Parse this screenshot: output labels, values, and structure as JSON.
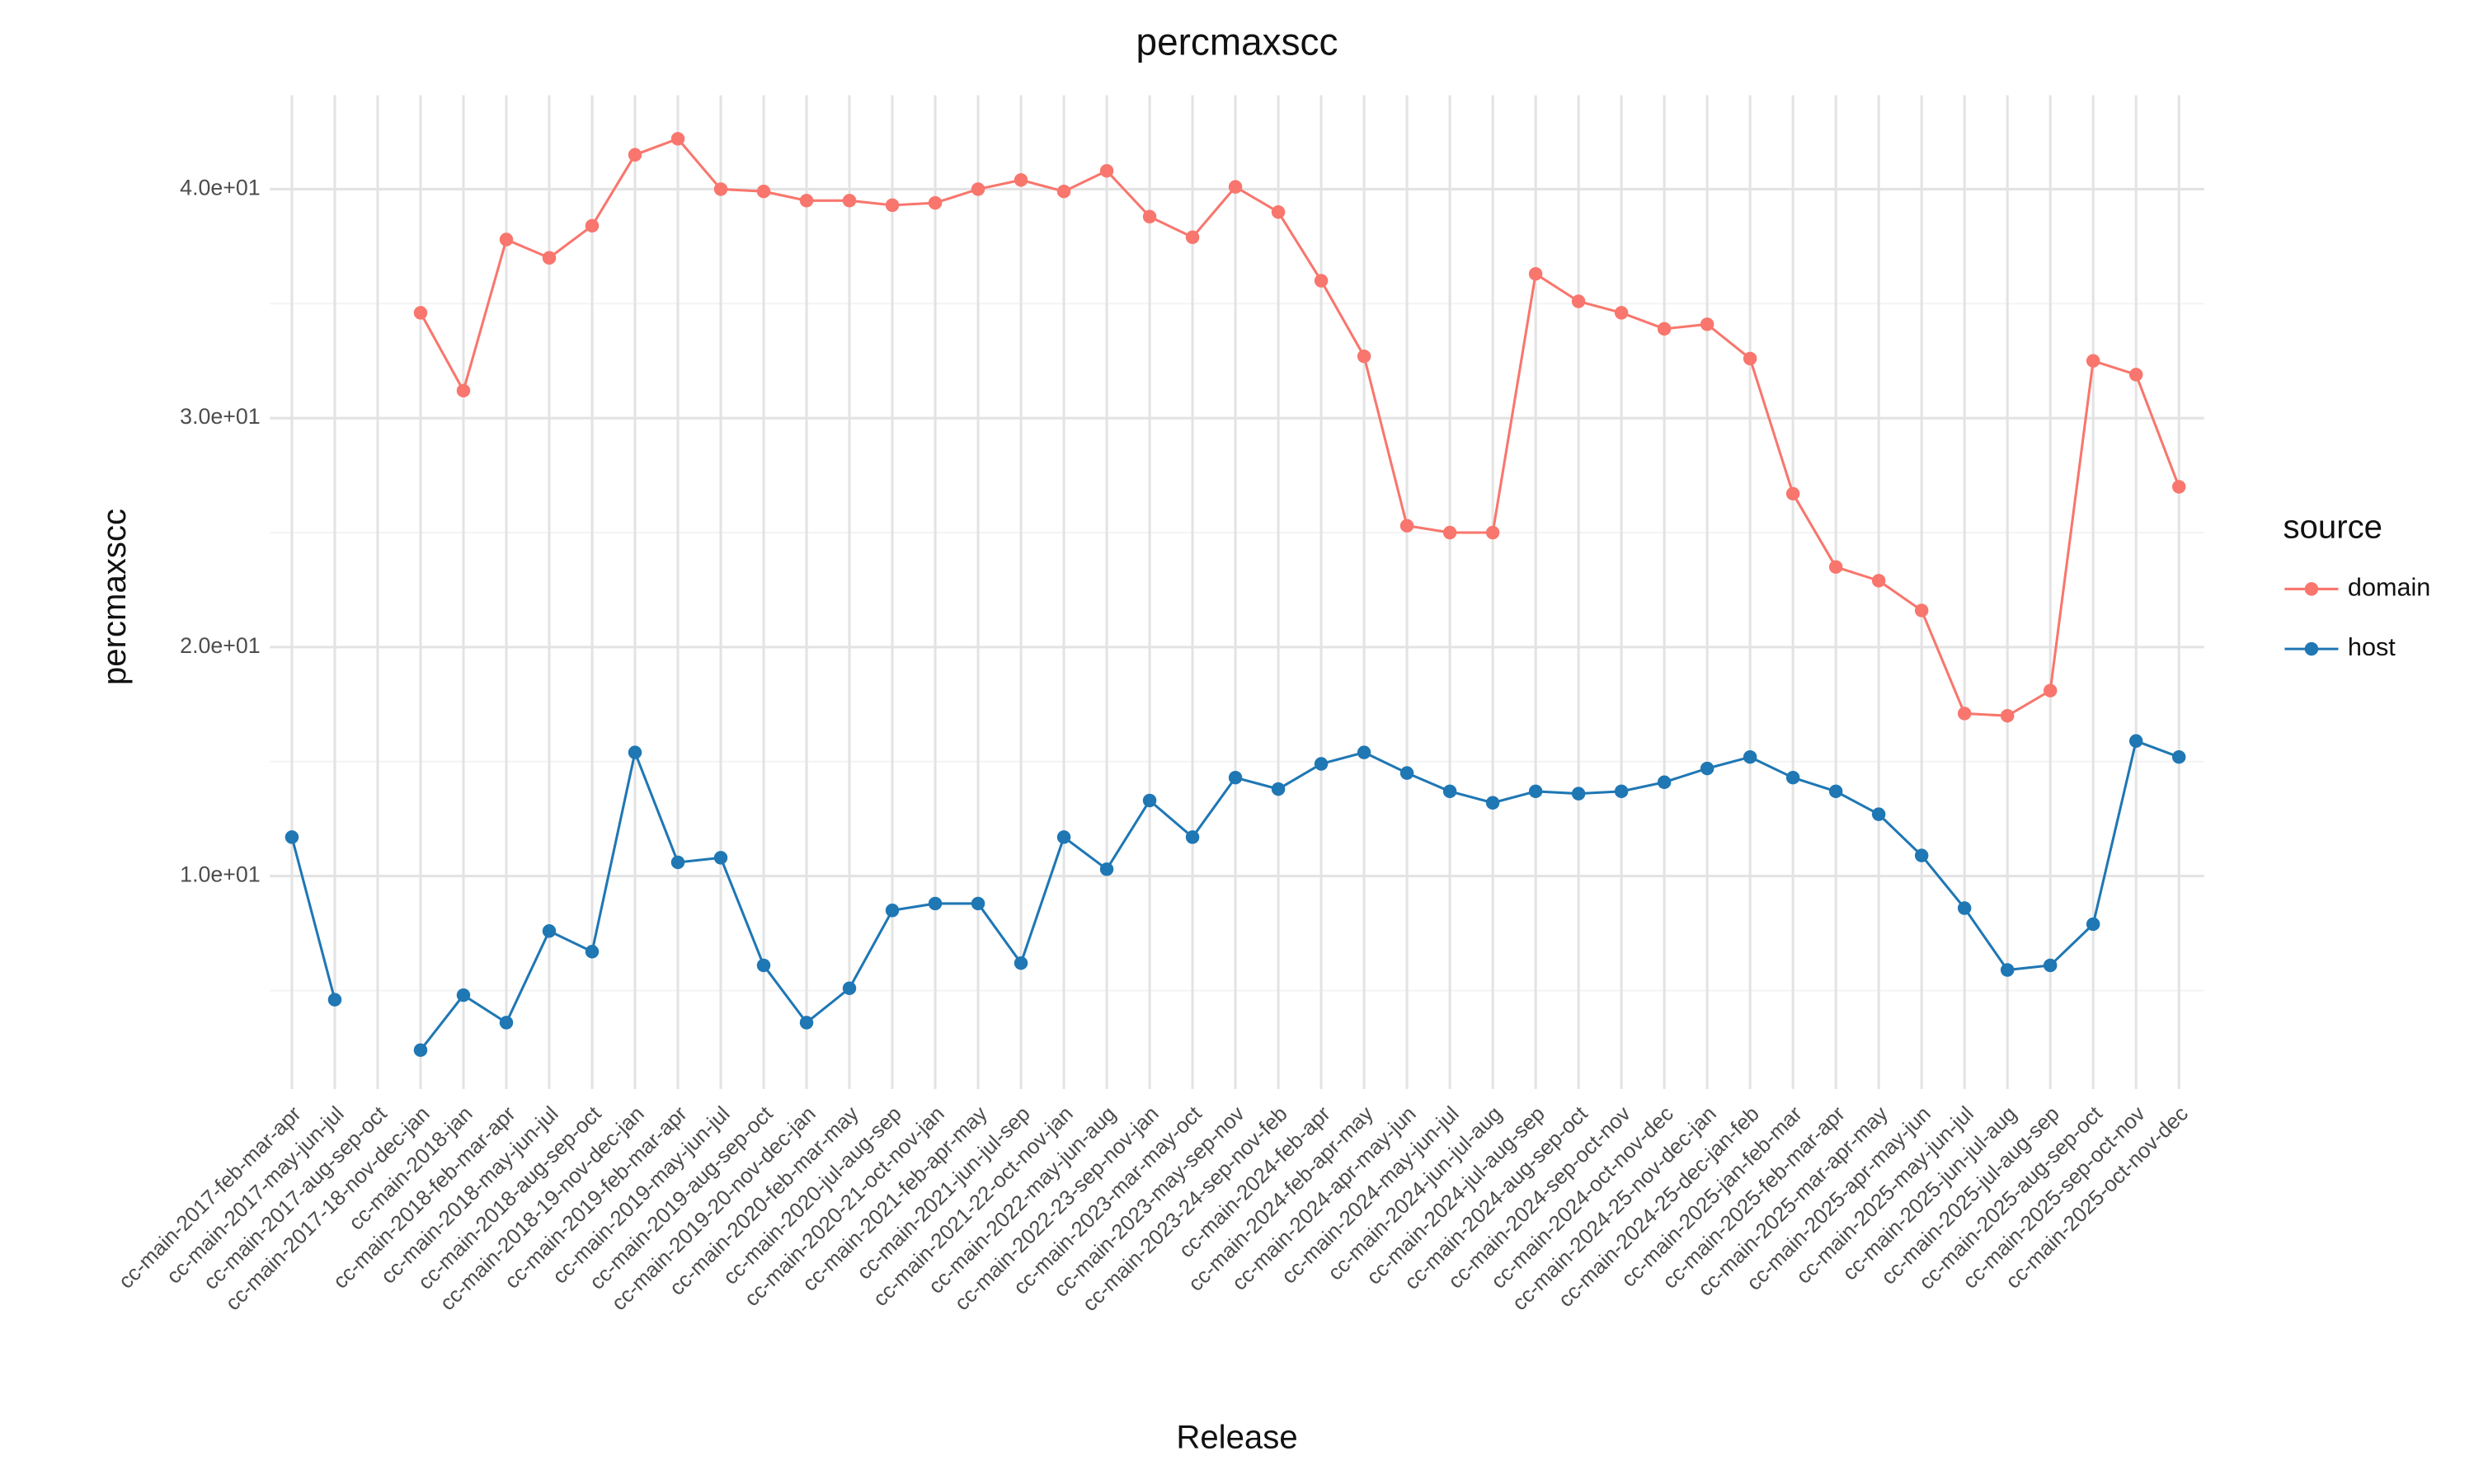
{
  "chart_data": {
    "type": "line",
    "title": "percmaxscc",
    "x_label": "Release",
    "y_label": "percmaxscc",
    "legend_title": "source",
    "legend_position": "right",
    "grid": true,
    "categories": [
      "cc-main-2017-feb-mar-apr",
      "cc-main-2017-may-jun-jul",
      "cc-main-2017-aug-sep-oct",
      "cc-main-2017-18-nov-dec-jan",
      "cc-main-2018-jan",
      "cc-main-2018-feb-mar-apr",
      "cc-main-2018-may-jun-jul",
      "cc-main-2018-aug-sep-oct",
      "cc-main-2018-19-nov-dec-jan",
      "cc-main-2019-feb-mar-apr",
      "cc-main-2019-may-jun-jul",
      "cc-main-2019-aug-sep-oct",
      "cc-main-2019-20-nov-dec-jan",
      "cc-main-2020-feb-mar-may",
      "cc-main-2020-jul-aug-sep",
      "cc-main-2020-21-oct-nov-jan",
      "cc-main-2021-feb-apr-may",
      "cc-main-2021-jun-jul-sep",
      "cc-main-2021-22-oct-nov-jan",
      "cc-main-2022-may-jun-aug",
      "cc-main-2022-23-sep-nov-jan",
      "cc-main-2023-mar-may-oct",
      "cc-main-2023-may-sep-nov",
      "cc-main-2023-24-sep-nov-feb",
      "cc-main-2024-feb-apr",
      "cc-main-2024-feb-apr-may",
      "cc-main-2024-apr-may-jun",
      "cc-main-2024-may-jun-jul",
      "cc-main-2024-jun-jul-aug",
      "cc-main-2024-jul-aug-sep",
      "cc-main-2024-aug-sep-oct",
      "cc-main-2024-sep-oct-nov",
      "cc-main-2024-oct-nov-dec",
      "cc-main-2024-25-nov-dec-jan",
      "cc-main-2024-25-dec-jan-feb",
      "cc-main-2025-jan-feb-mar",
      "cc-main-2025-feb-mar-apr",
      "cc-main-2025-mar-apr-may",
      "cc-main-2025-apr-may-jun",
      "cc-main-2025-may-jun-jul",
      "cc-main-2025-jun-jul-aug",
      "cc-main-2025-jul-aug-sep",
      "cc-main-2025-aug-sep-oct",
      "cc-main-2025-sep-oct-nov",
      "cc-main-2025-oct-nov-dec"
    ],
    "series": [
      {
        "name": "domain",
        "color": "#f8766d",
        "values": [
          null,
          null,
          null,
          34.6,
          31.2,
          37.8,
          37.0,
          38.4,
          41.5,
          42.2,
          40.0,
          39.9,
          39.5,
          39.5,
          39.3,
          39.4,
          40.0,
          40.4,
          39.9,
          40.8,
          38.8,
          37.9,
          40.1,
          39.0,
          36.0,
          32.7,
          25.3,
          25.0,
          25.0,
          36.3,
          35.1,
          34.6,
          33.9,
          34.1,
          32.6,
          26.7,
          23.5,
          22.9,
          21.6,
          17.1,
          17.0,
          18.1,
          32.5,
          31.9,
          27.0
        ]
      },
      {
        "name": "host",
        "color": "#1f77b4",
        "values": [
          11.7,
          4.6,
          null,
          2.4,
          4.8,
          3.6,
          7.6,
          6.7,
          15.4,
          10.6,
          10.8,
          6.1,
          3.6,
          5.1,
          8.5,
          8.8,
          8.8,
          6.2,
          11.7,
          10.3,
          13.3,
          11.7,
          14.3,
          13.8,
          14.9,
          15.4,
          14.5,
          13.7,
          13.2,
          13.7,
          13.6,
          13.7,
          14.1,
          14.7,
          15.2,
          14.3,
          13.7,
          12.7,
          10.9,
          8.6,
          5.9,
          6.1,
          7.9,
          15.9,
          15.2
        ]
      }
    ],
    "ylim": [
      0.7,
      44.1
    ],
    "yticks": [
      {
        "value": 10,
        "label": "1.0e+01"
      },
      {
        "value": 20,
        "label": "2.0e+01"
      },
      {
        "value": 30,
        "label": "3.0e+01"
      },
      {
        "value": 40,
        "label": "4.0e+01"
      }
    ],
    "minor_yticks": [
      5,
      15,
      25,
      35
    ]
  }
}
